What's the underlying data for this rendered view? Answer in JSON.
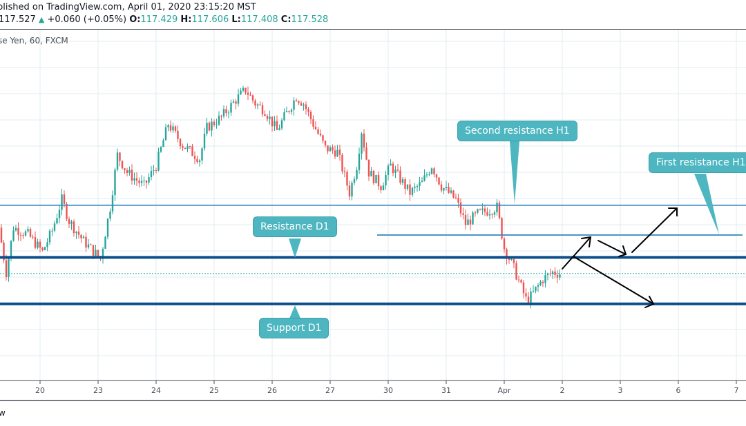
{
  "header": {
    "published": "blished on TradingView.com, April 01, 2020 23:15:20 MST",
    "last": "117.527",
    "change": "+0.060 (+0.05%)",
    "o_label": "O:",
    "o": "117.429",
    "h_label": "H:",
    "h": "117.606",
    "l_label": "L:",
    "l": "117.408",
    "c_label": "C:",
    "c": "117.528",
    "up_icon": "triangle-up-icon",
    "symbol": "se Yen, 60, FXCM"
  },
  "footer": {
    "text": "w"
  },
  "colors": {
    "up": "#26a69a",
    "down": "#ef5350",
    "level_thick": "#0d4f8b",
    "level_thin": "#3d8cc4",
    "callout": "#4db6c1",
    "grid": "#e1ecf2"
  },
  "chart_data": {
    "type": "candlestick",
    "timeframe": "60",
    "x_ticks": [
      "20",
      "23",
      "24",
      "25",
      "26",
      "27",
      "30",
      "31",
      "Apr",
      "2",
      "3",
      "6",
      "7"
    ],
    "x_tick_dates": [
      "03-20",
      "03-23",
      "03-24",
      "03-25",
      "03-26",
      "03-27",
      "03-30",
      "03-31",
      "04-01",
      "04-02",
      "04-03",
      "04-06",
      "04-07"
    ],
    "grid": true,
    "last_price": 117.528,
    "price_path": [
      [
        "03-19 07",
        118.27
      ],
      [
        "03-19 10",
        117.55
      ],
      [
        "03-19 13",
        118.27
      ],
      [
        "03-19 19",
        118.16
      ],
      [
        "03-20 01",
        117.88
      ],
      [
        "03-20 05",
        118.22
      ],
      [
        "03-20 09",
        118.72
      ],
      [
        "03-20 12",
        118.38
      ],
      [
        "03-20 18",
        118.05
      ],
      [
        "03-23 01",
        117.77
      ],
      [
        "03-23 05",
        118.6
      ],
      [
        "03-23 08",
        119.44
      ],
      [
        "03-23 12",
        119.16
      ],
      [
        "03-23 19",
        118.94
      ],
      [
        "03-24 00",
        119.27
      ],
      [
        "03-24 05",
        119.94
      ],
      [
        "03-24 11",
        119.6
      ],
      [
        "03-24 18",
        119.38
      ],
      [
        "03-24 21",
        119.88
      ],
      [
        "03-25 03",
        120.05
      ],
      [
        "03-25 09",
        120.33
      ],
      [
        "03-25 13",
        120.49
      ],
      [
        "03-25 17",
        120.27
      ],
      [
        "03-25 21",
        120.16
      ],
      [
        "03-26 02",
        119.83
      ],
      [
        "03-26 05",
        120.05
      ],
      [
        "03-26 10",
        120.38
      ],
      [
        "03-26 13",
        120.27
      ],
      [
        "03-26 17",
        119.94
      ],
      [
        "03-26 22",
        119.55
      ],
      [
        "03-27 03",
        119.49
      ],
      [
        "03-27 08",
        118.83
      ],
      [
        "03-27 11",
        119.27
      ],
      [
        "03-27 13",
        119.83
      ],
      [
        "03-27 16",
        119.16
      ],
      [
        "03-27 21",
        118.94
      ],
      [
        "03-30 01",
        119.27
      ],
      [
        "03-30 05",
        119.05
      ],
      [
        "03-30 09",
        118.83
      ],
      [
        "03-30 14",
        118.99
      ],
      [
        "03-30 18",
        119.27
      ],
      [
        "03-30 22",
        118.94
      ],
      [
        "03-31 04",
        118.72
      ],
      [
        "03-31 08",
        118.33
      ],
      [
        "03-31 13",
        118.49
      ],
      [
        "03-31 18",
        118.55
      ],
      [
        "03-31 21",
        118.6
      ],
      [
        "04-01 00",
        117.94
      ],
      [
        "04-01 04",
        117.61
      ],
      [
        "04-01 09",
        117.11
      ],
      [
        "04-01 11",
        117.16
      ],
      [
        "04-01 16",
        117.44
      ],
      [
        "04-01 20",
        117.55
      ],
      [
        "04-01 23",
        117.53
      ]
    ],
    "levels": [
      {
        "name": "Second resistance H1",
        "price": 118.63,
        "style": "thin"
      },
      {
        "name": "First resistance H1",
        "price": 118.15,
        "style": "thin"
      },
      {
        "name": "Resistance D1",
        "price": 117.79,
        "style": "thick"
      },
      {
        "name": "Support D1",
        "price": 117.04,
        "style": "thick"
      }
    ]
  },
  "callouts": {
    "second_resistance": "Second resistance H1",
    "first_resistance": "First resistance H1",
    "resistance_d1": "Resistance D1",
    "support_d1": "Support D1"
  }
}
